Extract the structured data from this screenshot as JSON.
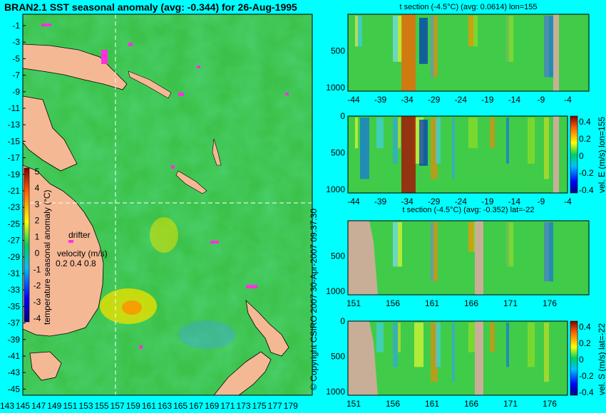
{
  "main_map": {
    "title": "BRAN2.1 SST seasonal anomaly (avg: -0.344) for 26-Aug-1995",
    "lat_ticks": [
      "-1",
      "-3",
      "-5",
      "-7",
      "-9",
      "-11",
      "-13",
      "-15",
      "-17",
      "-19",
      "-21",
      "-23",
      "-25",
      "-27",
      "-29",
      "-31",
      "-33",
      "-35",
      "-37",
      "-39",
      "-41",
      "-43",
      "-45"
    ],
    "lon_ticks": [
      "143",
      "145",
      "147",
      "149",
      "151",
      "153",
      "155",
      "157",
      "159",
      "161",
      "163",
      "165",
      "167",
      "169",
      "171",
      "173",
      "175",
      "177",
      "179"
    ],
    "colorbar_ticks": [
      "5",
      "4",
      "3",
      "2",
      "1",
      "0",
      "-1",
      "-2",
      "-3",
      "-4"
    ],
    "colorbar_label": "temperature seasonal anomaly (°C)",
    "drifter_label": "drifter",
    "velocity_label": "velocity (m/s)",
    "velocity_values": "0.2 0.4 0.8",
    "copyright": "© Copyright CSIRO 2007  30-Apr-2007 09:37:30"
  },
  "panels": [
    {
      "title": "t section (-4.5°C) (avg: 0.0614) lon=155",
      "x_ticks": [
        "-44",
        "-39",
        "-34",
        "-29",
        "-24",
        "-19",
        "-14",
        "-9",
        "-4"
      ],
      "y_ticks": [
        "500",
        "1000"
      ]
    },
    {
      "title": "",
      "x_ticks": [
        "-44",
        "-39",
        "-34",
        "-29",
        "-24",
        "-19",
        "-14",
        "-9",
        "-4"
      ],
      "y_ticks": [
        "0",
        "500",
        "1000"
      ],
      "colorbar_ticks": [
        "0.4",
        "0.2",
        "0",
        "-0.2",
        "-0.4"
      ],
      "colorbar_label": "vel. E (m/s) lon=155"
    },
    {
      "title": "t section (-4.5°C) (avg: -0.352) lat=-22",
      "x_ticks": [
        "151",
        "156",
        "161",
        "166",
        "171",
        "176"
      ],
      "y_ticks": [
        "500",
        "1000"
      ]
    },
    {
      "title": "",
      "x_ticks": [
        "151",
        "156",
        "161",
        "166",
        "171",
        "176"
      ],
      "y_ticks": [
        "0",
        "500",
        "1000"
      ],
      "colorbar_ticks": [
        "0.4",
        "0.2",
        "0",
        "-0.2",
        "-0.4"
      ],
      "colorbar_label": "vel. S (m/s) lat=-22"
    }
  ],
  "chart_data": [
    {
      "type": "heatmap",
      "title": "BRAN2.1 SST seasonal anomaly (avg: -0.344) for 26-Aug-1995",
      "xlabel": "",
      "ylabel": "",
      "x_range": [
        143,
        180
      ],
      "y_range": [
        -45,
        0
      ],
      "colorbar_range": [
        -4,
        5
      ],
      "colorbar_label": "temperature seasonal anomaly (°C)",
      "crosshair": {
        "lon": 155,
        "lat": -22
      }
    },
    {
      "type": "heatmap",
      "title": "t section (-4.5°C) (avg: 0.0614) lon=155",
      "x_range": [
        -45,
        0
      ],
      "y_range": [
        1000,
        0
      ]
    },
    {
      "type": "heatmap",
      "title": "",
      "x_range": [
        -45,
        0
      ],
      "y_range": [
        1000,
        0
      ],
      "colorbar_range": [
        -0.4,
        0.4
      ],
      "colorbar_label": "vel. E (m/s) lon=155"
    },
    {
      "type": "heatmap",
      "title": "t section (-4.5°C) (avg: -0.352) lat=-22",
      "x_range": [
        150,
        180
      ],
      "y_range": [
        1000,
        0
      ]
    },
    {
      "type": "heatmap",
      "title": "",
      "x_range": [
        150,
        180
      ],
      "y_range": [
        1000,
        0
      ],
      "colorbar_range": [
        -0.4,
        0.4
      ],
      "colorbar_label": "vel. S (m/s) lat=-22"
    }
  ]
}
